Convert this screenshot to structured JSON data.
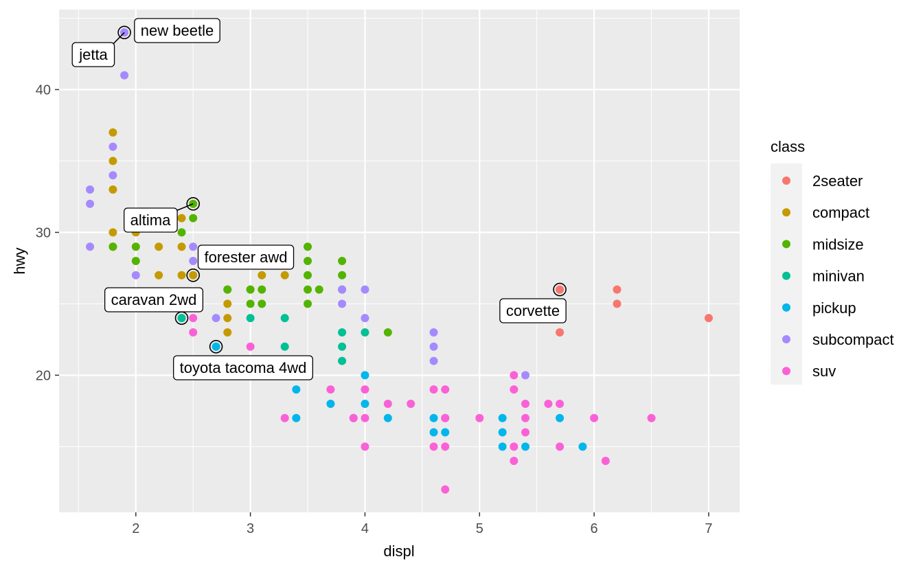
{
  "chart_data": {
    "type": "scatter",
    "xlabel": "displ",
    "ylabel": "hwy",
    "xlim": [
      1.33,
      7.27
    ],
    "ylim": [
      10.4,
      45.6
    ],
    "x_ticks": [
      2,
      3,
      4,
      5,
      6,
      7
    ],
    "y_ticks": [
      20,
      30,
      40
    ],
    "grid": true,
    "legend": {
      "title": "class",
      "position": "right",
      "entries": [
        {
          "name": "2seater",
          "color": "#F8766D"
        },
        {
          "name": "compact",
          "color": "#C49A00"
        },
        {
          "name": "midsize",
          "color": "#53B400"
        },
        {
          "name": "minivan",
          "color": "#00C094"
        },
        {
          "name": "pickup",
          "color": "#00B6EB"
        },
        {
          "name": "subcompact",
          "color": "#A58AFF"
        },
        {
          "name": "suv",
          "color": "#FB61D7"
        }
      ]
    },
    "series": [
      {
        "name": "2seater",
        "points": [
          [
            5.7,
            26
          ],
          [
            5.7,
            23
          ],
          [
            6.2,
            26
          ],
          [
            6.2,
            25
          ],
          [
            7.0,
            24
          ]
        ]
      },
      {
        "name": "compact",
        "points": [
          [
            1.8,
            37
          ],
          [
            1.8,
            35
          ],
          [
            1.8,
            33
          ],
          [
            1.8,
            30
          ],
          [
            1.8,
            29
          ],
          [
            2.0,
            30
          ],
          [
            2.2,
            29
          ],
          [
            2.2,
            27
          ],
          [
            2.4,
            31
          ],
          [
            2.4,
            29
          ],
          [
            2.4,
            27
          ],
          [
            2.5,
            27
          ],
          [
            2.8,
            26
          ],
          [
            2.8,
            25
          ],
          [
            2.8,
            24
          ],
          [
            2.8,
            23
          ],
          [
            3.0,
            26
          ],
          [
            3.1,
            27
          ],
          [
            3.3,
            27
          ]
        ]
      },
      {
        "name": "midsize",
        "points": [
          [
            1.8,
            29
          ],
          [
            2.0,
            29
          ],
          [
            2.0,
            28
          ],
          [
            2.4,
            30
          ],
          [
            2.5,
            32
          ],
          [
            2.5,
            31
          ],
          [
            2.8,
            26
          ],
          [
            3.0,
            26
          ],
          [
            3.0,
            25
          ],
          [
            3.1,
            26
          ],
          [
            3.1,
            25
          ],
          [
            3.5,
            29
          ],
          [
            3.5,
            28
          ],
          [
            3.5,
            27
          ],
          [
            3.5,
            26
          ],
          [
            3.5,
            25
          ],
          [
            3.6,
            26
          ],
          [
            3.8,
            28
          ],
          [
            3.8,
            27
          ],
          [
            3.8,
            26
          ],
          [
            4.2,
            23
          ]
        ]
      },
      {
        "name": "minivan",
        "points": [
          [
            2.4,
            24
          ],
          [
            3.0,
            24
          ],
          [
            3.3,
            24
          ],
          [
            3.3,
            22
          ],
          [
            3.8,
            23
          ],
          [
            3.8,
            22
          ],
          [
            3.8,
            21
          ],
          [
            4.0,
            23
          ]
        ]
      },
      {
        "name": "pickup",
        "points": [
          [
            2.7,
            22
          ],
          [
            3.4,
            19
          ],
          [
            3.4,
            17
          ],
          [
            3.7,
            18
          ],
          [
            3.9,
            17
          ],
          [
            4.0,
            20
          ],
          [
            4.0,
            18
          ],
          [
            4.2,
            17
          ],
          [
            4.6,
            17
          ],
          [
            4.6,
            16
          ],
          [
            4.7,
            17
          ],
          [
            4.7,
            16
          ],
          [
            5.2,
            17
          ],
          [
            5.2,
            16
          ],
          [
            5.2,
            15
          ],
          [
            5.4,
            15
          ],
          [
            5.7,
            17
          ],
          [
            5.9,
            15
          ]
        ]
      },
      {
        "name": "subcompact",
        "points": [
          [
            1.6,
            33
          ],
          [
            1.6,
            32
          ],
          [
            1.6,
            29
          ],
          [
            1.8,
            36
          ],
          [
            1.8,
            34
          ],
          [
            1.9,
            44
          ],
          [
            1.9,
            41
          ],
          [
            2.0,
            27
          ],
          [
            2.5,
            29
          ],
          [
            2.5,
            28
          ],
          [
            2.7,
            24
          ],
          [
            3.8,
            26
          ],
          [
            3.8,
            25
          ],
          [
            4.0,
            26
          ],
          [
            4.0,
            24
          ],
          [
            4.6,
            23
          ],
          [
            4.6,
            22
          ],
          [
            4.6,
            21
          ],
          [
            5.4,
            20
          ]
        ]
      },
      {
        "name": "suv",
        "points": [
          [
            2.5,
            24
          ],
          [
            2.5,
            23
          ],
          [
            3.0,
            22
          ],
          [
            3.3,
            17
          ],
          [
            3.7,
            19
          ],
          [
            3.9,
            17
          ],
          [
            4.0,
            19
          ],
          [
            4.0,
            17
          ],
          [
            4.0,
            15
          ],
          [
            4.2,
            18
          ],
          [
            4.4,
            18
          ],
          [
            4.6,
            19
          ],
          [
            4.6,
            15
          ],
          [
            4.7,
            19
          ],
          [
            4.7,
            17
          ],
          [
            4.7,
            15
          ],
          [
            4.7,
            12
          ],
          [
            5.0,
            17
          ],
          [
            5.3,
            20
          ],
          [
            5.3,
            19
          ],
          [
            5.3,
            15
          ],
          [
            5.3,
            14
          ],
          [
            5.4,
            18
          ],
          [
            5.4,
            17
          ],
          [
            5.4,
            16
          ],
          [
            5.6,
            18
          ],
          [
            5.7,
            18
          ],
          [
            5.7,
            15
          ],
          [
            6.0,
            17
          ],
          [
            6.1,
            14
          ],
          [
            6.5,
            17
          ]
        ]
      }
    ],
    "highlights": [
      {
        "label": "new beetle",
        "x": 1.9,
        "y": 44,
        "color": "#A58AFF"
      },
      {
        "label": "jetta",
        "x": 1.9,
        "y": 44,
        "color": "#A58AFF"
      },
      {
        "label": "altima",
        "x": 2.5,
        "y": 32,
        "color": "#53B400"
      },
      {
        "label": "forester awd",
        "x": 2.5,
        "y": 27,
        "color": "#C49A00"
      },
      {
        "label": "caravan 2wd",
        "x": 2.4,
        "y": 24,
        "color": "#00C094"
      },
      {
        "label": "toyota tacoma 4wd",
        "x": 2.7,
        "y": 22,
        "color": "#00B6EB"
      },
      {
        "label": "corvette",
        "x": 5.7,
        "y": 26,
        "color": "#F8766D"
      }
    ]
  }
}
